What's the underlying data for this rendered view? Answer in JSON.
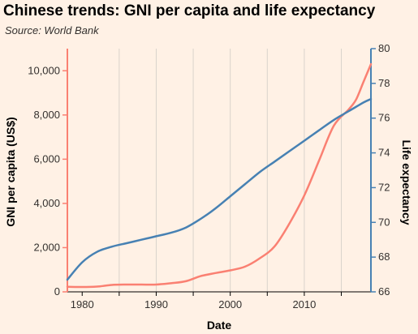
{
  "header": {
    "title": "Chinese trends: GNI per capita and life expectancy",
    "source": "Source: World Bank"
  },
  "chart_data": {
    "type": "line",
    "title": "Chinese trends: GNI per capita and life expectancy",
    "subtitle": "Source: World Bank",
    "xlabel": "Date",
    "ylabel_left": "GNI per capita (US$)",
    "ylabel_right": "Life expectancy",
    "xlim": [
      1978,
      2019
    ],
    "ylim_left": [
      0,
      11000
    ],
    "ylim_right": [
      66,
      80
    ],
    "x_ticks": [
      1980,
      1990,
      2000,
      2010
    ],
    "x_tick_labels": [
      "1980",
      "1990",
      "2000",
      "2010"
    ],
    "y_left_ticks": [
      0,
      2000,
      4000,
      6000,
      8000,
      10000
    ],
    "y_left_tick_labels": [
      "0",
      "2,000",
      "4,000",
      "6,000",
      "8,000",
      "10,000"
    ],
    "y_right_ticks": [
      66,
      68,
      70,
      72,
      74,
      76,
      78,
      80
    ],
    "y_right_tick_labels": [
      "66",
      "68",
      "70",
      "72",
      "74",
      "76",
      "78",
      "80"
    ],
    "grid": "vertical",
    "series": [
      {
        "axis": "left",
        "color": "#fa8072",
        "x": [
          1978,
          1980,
          1982,
          1984,
          1986,
          1988,
          1990,
          1992,
          1994,
          1996,
          1998,
          2000,
          2002,
          2004,
          2006,
          2008,
          2010,
          2012,
          2014,
          2016,
          2017,
          2018,
          2019
        ],
        "values": [
          230,
          220,
          240,
          310,
          330,
          330,
          330,
          390,
          480,
          710,
          850,
          970,
          1140,
          1520,
          2060,
          3100,
          4360,
          5940,
          7520,
          8250,
          8700,
          9500,
          10300
        ]
      },
      {
        "axis": "right",
        "color": "#4781b3",
        "x": [
          1978,
          1980,
          1982,
          1984,
          1986,
          1988,
          1990,
          1992,
          1994,
          1996,
          1998,
          2000,
          2002,
          2004,
          2006,
          2008,
          2010,
          2012,
          2014,
          2016,
          2018,
          2019
        ],
        "values": [
          66.7,
          67.7,
          68.3,
          68.6,
          68.8,
          69.0,
          69.2,
          69.4,
          69.7,
          70.2,
          70.8,
          71.5,
          72.2,
          72.9,
          73.5,
          74.1,
          74.7,
          75.3,
          75.9,
          76.4,
          76.9,
          77.1
        ]
      }
    ]
  }
}
